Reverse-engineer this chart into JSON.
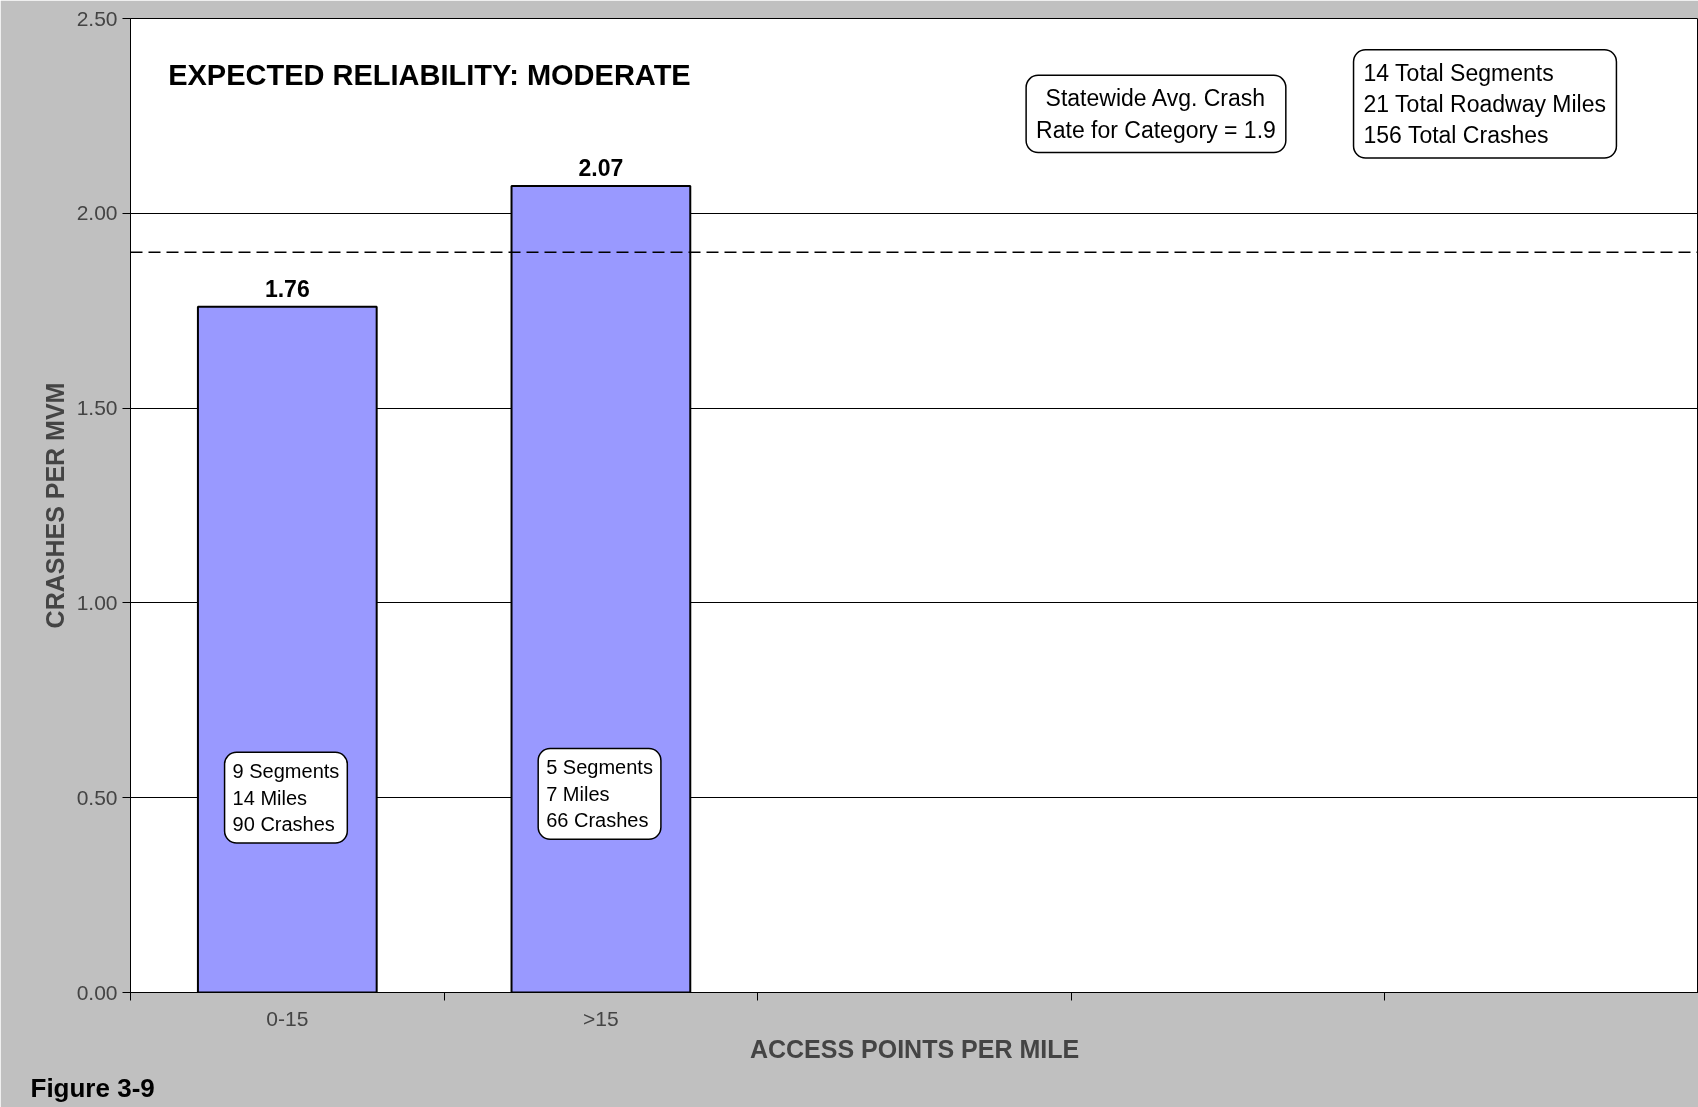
{
  "chart_data": {
    "type": "bar",
    "title": "EXPECTED RELIABILITY:  MODERATE",
    "xlabel": "ACCESS POINTS PER MILE",
    "ylabel": "CRASHES PER MVM",
    "categories": [
      "0-15",
      ">15",
      null,
      null,
      null
    ],
    "values": [
      1.76,
      2.07,
      null,
      null,
      null
    ],
    "color": "#9999ff",
    "data_labels": true,
    "ylim": [
      0,
      2.5
    ],
    "yticks": [
      {
        "value": 0,
        "label": "0.00"
      },
      {
        "value": 0.5,
        "label": "0.50"
      },
      {
        "value": 1,
        "label": "1.00"
      },
      {
        "value": 1.5,
        "label": "1.50"
      },
      {
        "value": 2,
        "label": "2.00"
      },
      {
        "value": 2.5,
        "label": "2.50"
      }
    ],
    "grid": "y",
    "ref_lines": [
      {
        "axis": "y",
        "value": 1.9,
        "line_style": "dashed",
        "color": "#000000"
      }
    ],
    "annotations": [
      "9 Segments\n14 Miles\n90 Crashes",
      "5 Segments\n7 Miles\n66 Crashes",
      "Statewide Avg. Crash\nRate for Category = 1.9",
      "14 Total Segments\n21 Total Roadway Miles\n156 Total Crashes",
      "Figure 3-9"
    ]
  }
}
